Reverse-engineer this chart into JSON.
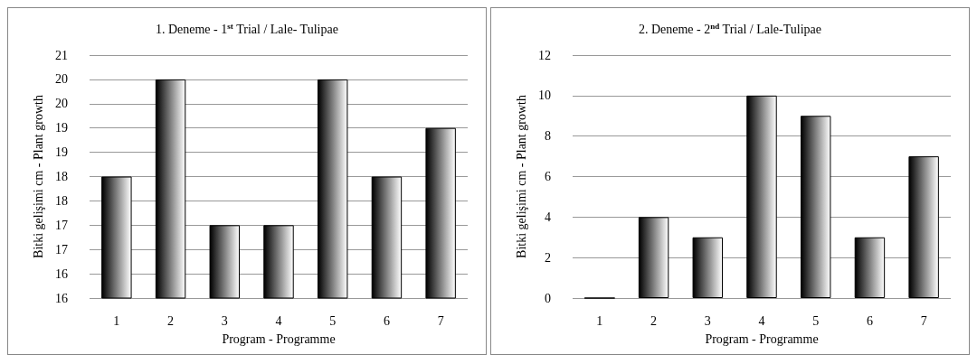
{
  "chart_data": [
    {
      "type": "bar",
      "title": "1. Deneme - 1$^{st}$ Trial / Lale- Tulipae",
      "xlabel": "Program - Programme",
      "ylabel": "Bitki gelişimi cm - Plant growth",
      "categories": [
        "1",
        "2",
        "3",
        "4",
        "5",
        "6",
        "7"
      ],
      "values": [
        18.5,
        20.5,
        17.5,
        17.5,
        20.5,
        18.5,
        19.5
      ],
      "color": "#000000",
      "ylim": [
        16,
        21
      ],
      "yticks": [
        16,
        {
          "value": 16.5,
          "label": "16"
        },
        17,
        {
          "value": 17.5,
          "label": "17"
        },
        18,
        {
          "value": 18.5,
          "label": "18"
        },
        19,
        {
          "value": 19.5,
          "label": "19"
        },
        20,
        {
          "value": 20.5,
          "label": "20"
        },
        21
      ],
      "grid": "y"
    },
    {
      "type": "bar",
      "title": "2. Deneme - 2$^{nd}$ Trial / Lale-Tulipae",
      "xlabel": "Program - Programme",
      "ylabel": "Bitki gelişimi cm - Plant growth",
      "categories": [
        "1",
        "2",
        "3",
        "4",
        "5",
        "6",
        "7"
      ],
      "values": [
        0,
        4,
        3,
        10,
        9,
        3,
        7
      ],
      "color": "#000000",
      "ylim": [
        0,
        12
      ],
      "yticks": [
        0,
        2,
        4,
        6,
        8,
        10,
        12
      ],
      "grid": "y"
    }
  ]
}
